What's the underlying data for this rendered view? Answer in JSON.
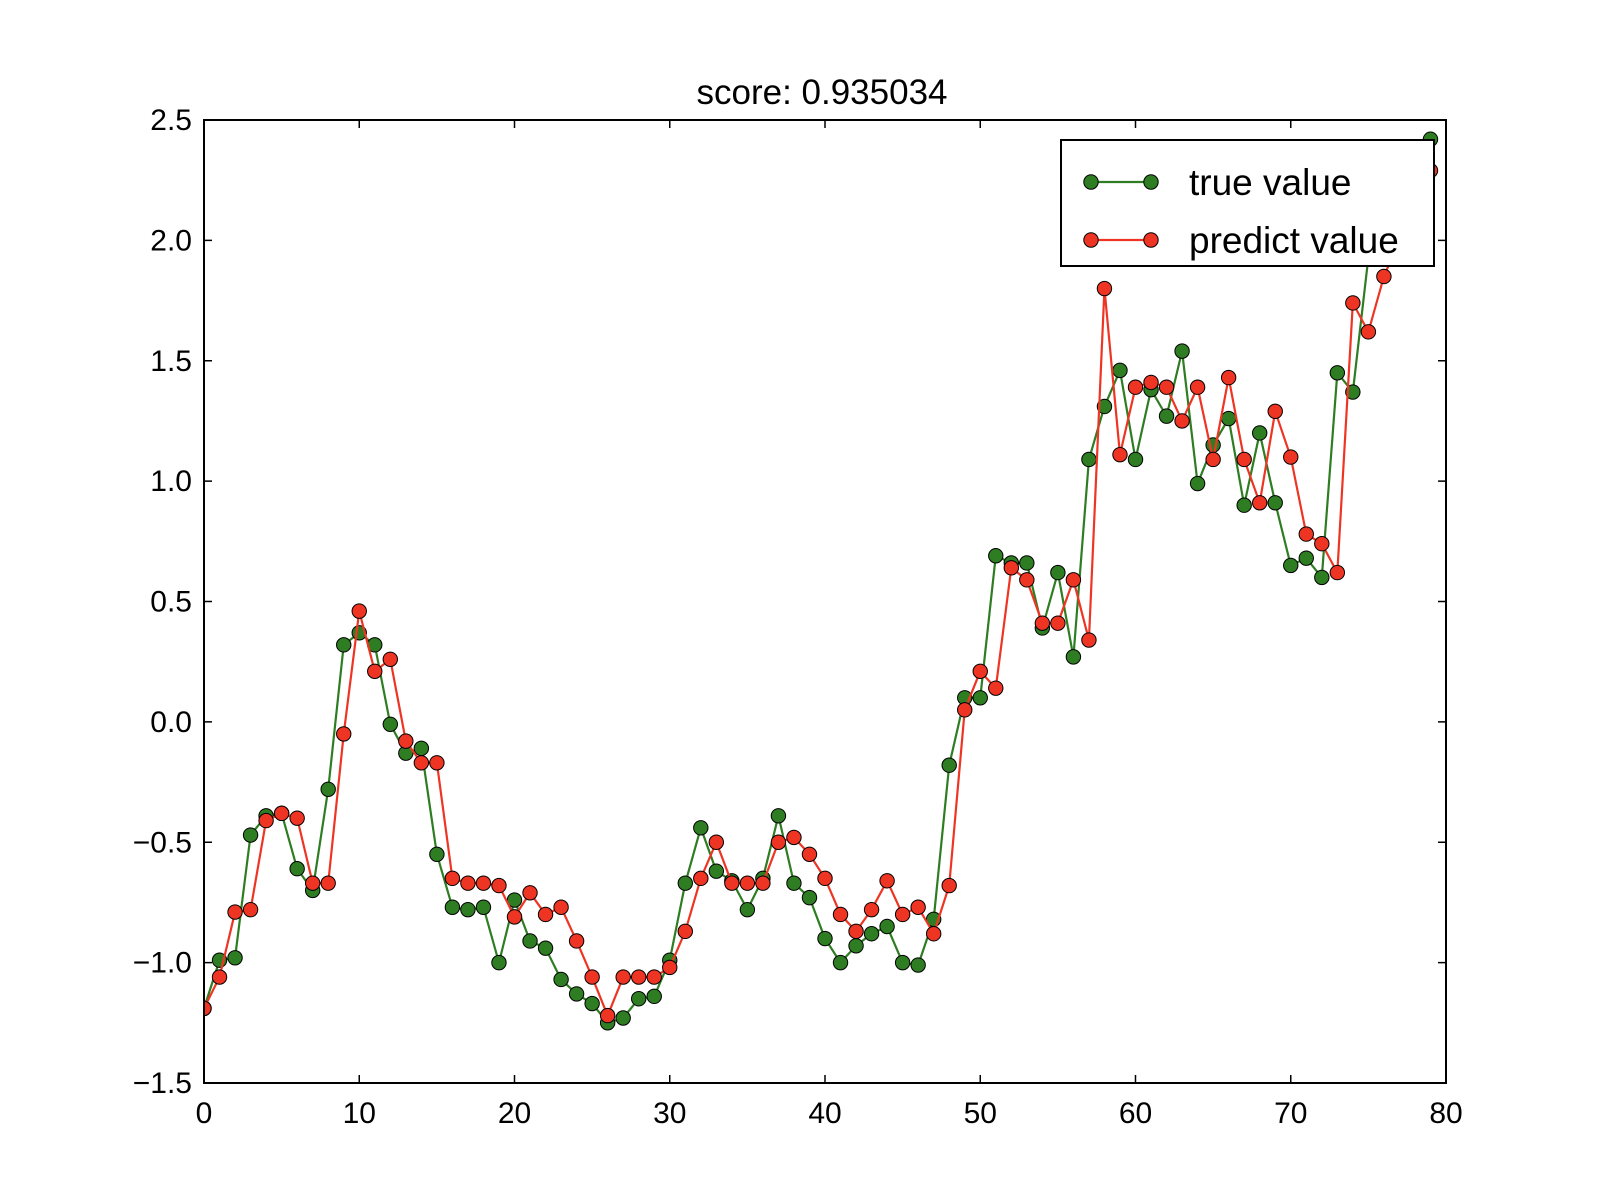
{
  "chart_data": {
    "type": "line",
    "title": "score: 0.935034",
    "xlabel": "",
    "ylabel": "",
    "xlim": [
      0,
      80
    ],
    "ylim": [
      -1.5,
      2.5
    ],
    "xticks": [
      0,
      10,
      20,
      30,
      40,
      50,
      60,
      70,
      80
    ],
    "yticks": [
      -1.5,
      -1.0,
      -0.5,
      0.0,
      0.5,
      1.0,
      1.5,
      2.0,
      2.5
    ],
    "xtick_labels": [
      "0",
      "10",
      "20",
      "30",
      "40",
      "50",
      "60",
      "70",
      "80"
    ],
    "ytick_labels": [
      "−1.5",
      "−1.0",
      "−0.5",
      "0.0",
      "0.5",
      "1.0",
      "1.5",
      "2.0",
      "2.5"
    ],
    "grid": false,
    "legend_position": "top-right",
    "x": [
      0,
      1,
      2,
      3,
      4,
      5,
      6,
      7,
      8,
      9,
      10,
      11,
      12,
      13,
      14,
      15,
      16,
      17,
      18,
      19,
      20,
      21,
      22,
      23,
      24,
      25,
      26,
      27,
      28,
      29,
      30,
      31,
      32,
      33,
      34,
      35,
      36,
      37,
      38,
      39,
      40,
      41,
      42,
      43,
      44,
      45,
      46,
      47,
      48,
      49,
      50,
      51,
      52,
      53,
      54,
      55,
      56,
      57,
      58,
      59,
      60,
      61,
      62,
      63,
      64,
      65,
      66,
      67,
      68,
      69,
      70,
      71,
      72,
      73,
      74,
      75,
      76,
      77,
      78,
      79
    ],
    "series": [
      {
        "name": "true value",
        "color": "#2e7d22",
        "marker": "circle",
        "values": [
          -1.19,
          -0.99,
          -0.98,
          -0.47,
          -0.39,
          -0.38,
          -0.61,
          -0.7,
          -0.28,
          0.32,
          0.37,
          0.32,
          -0.01,
          -0.13,
          -0.11,
          -0.55,
          -0.77,
          -0.78,
          -0.77,
          -1.0,
          -0.74,
          -0.91,
          -0.94,
          -1.07,
          -1.13,
          -1.17,
          -1.25,
          -1.23,
          -1.15,
          -1.14,
          -0.99,
          -0.67,
          -0.44,
          -0.62,
          -0.66,
          -0.78,
          -0.65,
          -0.39,
          -0.67,
          -0.73,
          -0.9,
          -1.0,
          -0.93,
          -0.88,
          -0.85,
          -1.0,
          -1.01,
          -0.82,
          -0.18,
          0.1,
          0.1,
          0.69,
          0.66,
          0.66,
          0.39,
          0.62,
          0.27,
          1.09,
          1.31,
          1.46,
          1.09,
          1.38,
          1.27,
          1.54,
          0.99,
          1.15,
          1.26,
          0.9,
          1.2,
          0.91,
          0.65,
          0.68,
          0.6,
          1.45,
          1.37,
          1.93,
          2.14,
          2.28,
          2.35,
          2.42
        ]
      },
      {
        "name": "predict value",
        "color": "#ee3524",
        "marker": "circle",
        "values": [
          -1.19,
          -1.06,
          -0.79,
          -0.78,
          -0.41,
          -0.38,
          -0.4,
          -0.67,
          -0.67,
          -0.05,
          0.46,
          0.21,
          0.26,
          -0.08,
          -0.17,
          -0.17,
          -0.65,
          -0.67,
          -0.67,
          -0.68,
          -0.81,
          -0.71,
          -0.8,
          -0.77,
          -0.91,
          -1.06,
          -1.22,
          -1.06,
          -1.06,
          -1.06,
          -1.02,
          -0.87,
          -0.65,
          -0.5,
          -0.67,
          -0.67,
          -0.67,
          -0.5,
          -0.48,
          -0.55,
          -0.65,
          -0.8,
          -0.87,
          -0.78,
          -0.66,
          -0.8,
          -0.77,
          -0.88,
          -0.68,
          0.05,
          0.21,
          0.14,
          0.64,
          0.59,
          0.41,
          0.41,
          0.59,
          0.34,
          1.8,
          1.11,
          1.39,
          1.41,
          1.39,
          1.25,
          1.39,
          1.09,
          1.43,
          1.09,
          0.91,
          1.29,
          1.1,
          0.78,
          0.74,
          0.62,
          1.74,
          1.62,
          1.85,
          2.0,
          2.12,
          2.29
        ]
      }
    ]
  }
}
